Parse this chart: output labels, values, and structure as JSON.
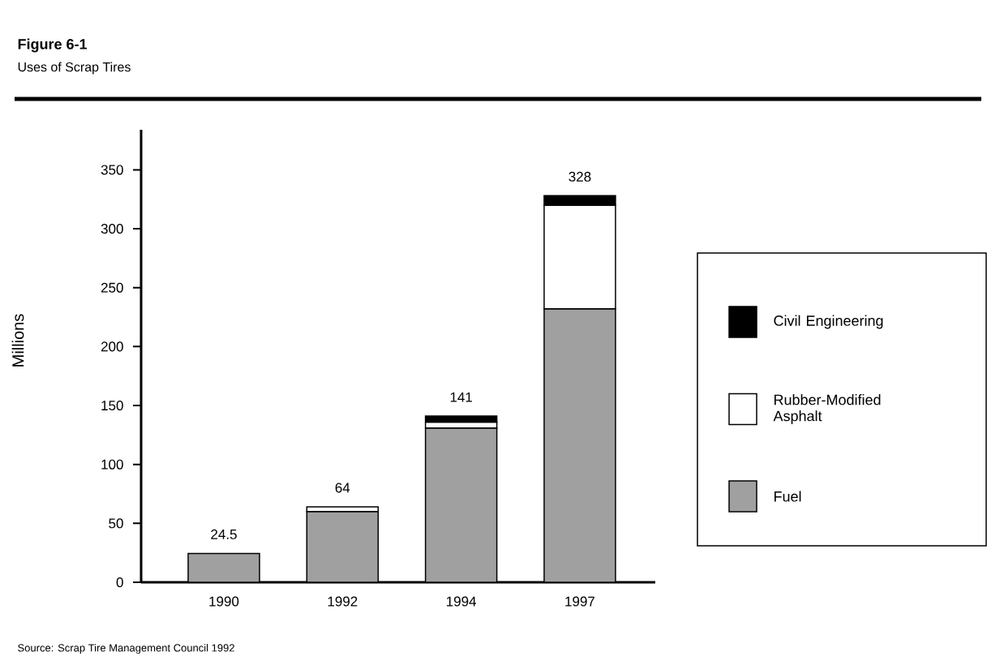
{
  "chart_data": {
    "type": "bar",
    "title": "Figure 6-1",
    "subtitle": "Uses of Scrap Tires",
    "ylabel": "Millions",
    "categories": [
      "1990",
      "1992",
      "1994",
      "1997"
    ],
    "stacked": true,
    "series": [
      {
        "name": "Fuel",
        "color": "#a0a0a0",
        "values": [
          24.5,
          60,
          131,
          232
        ]
      },
      {
        "name": "Rubber-Modified Asphalt",
        "color": "#ffffff",
        "values": [
          0,
          4,
          5,
          88
        ]
      },
      {
        "name": "Civil Engineering",
        "color": "#000000",
        "values": [
          0,
          0,
          5,
          8
        ]
      }
    ],
    "ylim": [
      0,
      384
    ],
    "yticks": [
      0,
      50,
      100,
      150,
      200,
      250,
      300,
      350
    ],
    "totals": [
      "24.5",
      "64",
      "141",
      "328"
    ],
    "legend": "right",
    "annotations": [
      "Source:  Scrap Tire Management Council 1992"
    ]
  }
}
